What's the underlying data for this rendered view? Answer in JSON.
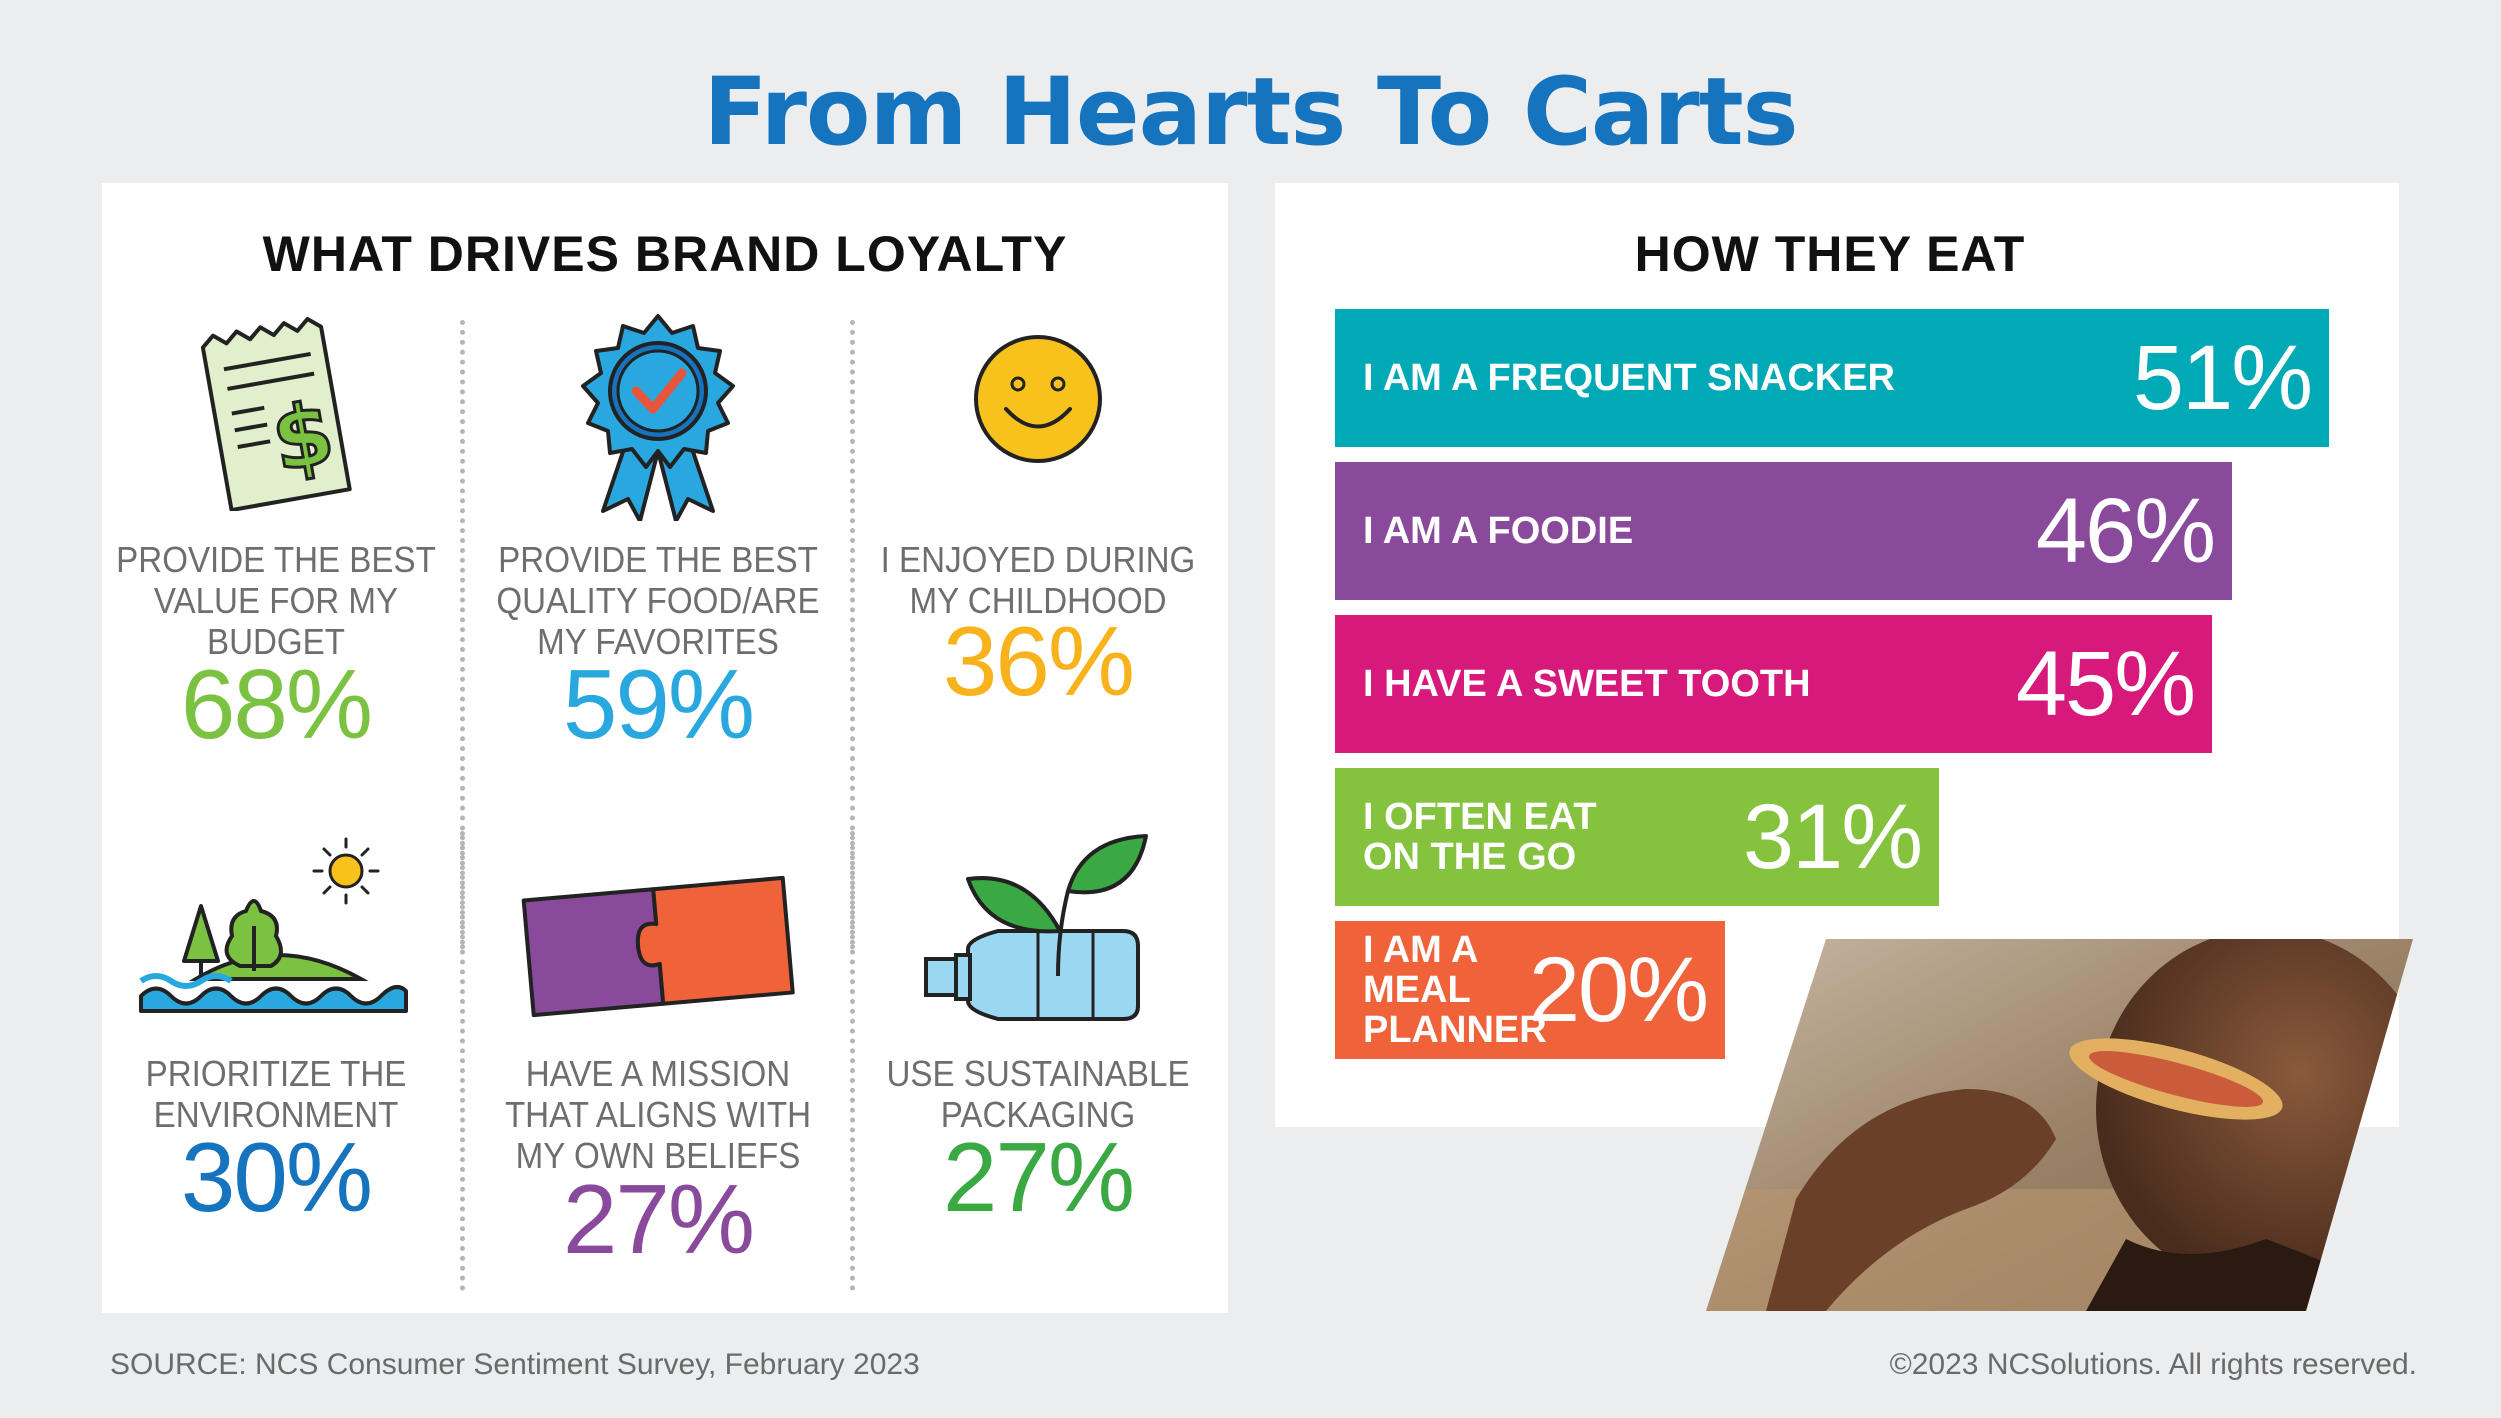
{
  "title": "From Hearts To Carts",
  "loyalty": {
    "heading": "WHAT DRIVES BRAND LOYALTY",
    "items": [
      {
        "label": "PROVIDE THE BEST\nVALUE FOR MY\nBUDGET",
        "value": "68%",
        "color": "#7cc242",
        "icon": "receipt-dollar-icon"
      },
      {
        "label": "PROVIDE THE BEST\nQUALITY FOOD/ARE\nMY FAVORITES",
        "value": "59%",
        "color": "#29a8e0",
        "icon": "award-ribbon-icon"
      },
      {
        "label": "I ENJOYED DURING\nMY CHILDHOOD",
        "value": "36%",
        "color": "#f8b21c",
        "icon": "smiley-face-icon"
      },
      {
        "label": "PRIORITIZE THE\nENVIRONMENT",
        "value": "30%",
        "color": "#1673bd",
        "icon": "island-trees-icon"
      },
      {
        "label": "HAVE A MISSION\nTHAT ALIGNS WITH\nMY OWN BELIEFS",
        "value": "27%",
        "color": "#8a4a9c",
        "icon": "puzzle-pieces-icon"
      },
      {
        "label": "USE SUSTAINABLE\nPACKAGING",
        "value": "27%",
        "color": "#3aa843",
        "icon": "bottle-plant-icon"
      }
    ]
  },
  "chart_data": {
    "type": "bar",
    "title": "HOW THEY EAT",
    "categories": [
      "I AM A FREQUENT SNACKER",
      "I AM A FOODIE",
      "I HAVE A SWEET TOOTH",
      "I OFTEN EAT ON THE GO",
      "I AM A MEAL PLANNER"
    ],
    "labels": [
      "I AM A FREQUENT SNACKER",
      "I AM A FOODIE",
      "I HAVE A SWEET TOOTH",
      "I OFTEN EAT\nON THE GO",
      "I AM A\nMEAL\nPLANNER"
    ],
    "values": [
      51,
      46,
      45,
      31,
      20
    ],
    "value_labels": [
      "51%",
      "46%",
      "45%",
      "31%",
      "20%"
    ],
    "colors": [
      "#00a9b6",
      "#8a4a9c",
      "#d7197c",
      "#85c33f",
      "#f0623a"
    ],
    "orientation": "horizontal",
    "unit": "%"
  },
  "footer": {
    "source": "SOURCE: NCS Consumer Sentiment Survey, February 2023",
    "copyright": "©2023 NCSolutions. All rights reserved."
  }
}
